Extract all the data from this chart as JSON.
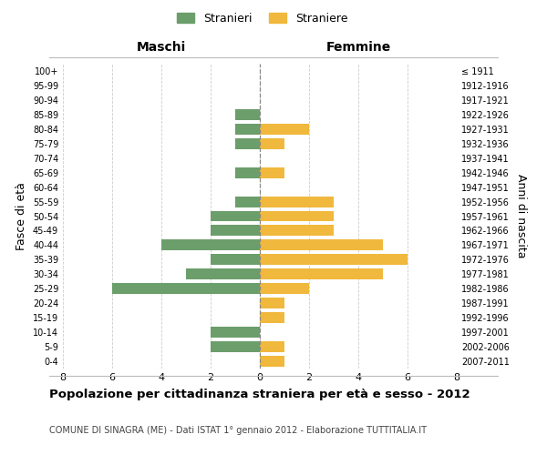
{
  "age_groups": [
    "0-4",
    "5-9",
    "10-14",
    "15-19",
    "20-24",
    "25-29",
    "30-34",
    "35-39",
    "40-44",
    "45-49",
    "50-54",
    "55-59",
    "60-64",
    "65-69",
    "70-74",
    "75-79",
    "80-84",
    "85-89",
    "90-94",
    "95-99",
    "100+"
  ],
  "birth_years": [
    "2007-2011",
    "2002-2006",
    "1997-2001",
    "1992-1996",
    "1987-1991",
    "1982-1986",
    "1977-1981",
    "1972-1976",
    "1967-1971",
    "1962-1966",
    "1957-1961",
    "1952-1956",
    "1947-1951",
    "1942-1946",
    "1937-1941",
    "1932-1936",
    "1927-1931",
    "1922-1926",
    "1917-1921",
    "1912-1916",
    "≤ 1911"
  ],
  "maschi": [
    0,
    2,
    2,
    0,
    0,
    6,
    3,
    2,
    4,
    2,
    2,
    1,
    0,
    1,
    0,
    1,
    1,
    1,
    0,
    0,
    0
  ],
  "femmine": [
    1,
    1,
    0,
    1,
    1,
    2,
    5,
    6,
    5,
    3,
    3,
    3,
    0,
    1,
    0,
    1,
    2,
    0,
    0,
    0,
    0
  ],
  "color_maschi": "#6b9e6b",
  "color_femmine": "#f0b83c",
  "title": "Popolazione per cittadinanza straniera per età e sesso - 2012",
  "subtitle": "COMUNE DI SINAGRA (ME) - Dati ISTAT 1° gennaio 2012 - Elaborazione TUTTITALIA.IT",
  "ylabel_left": "Fasce di età",
  "ylabel_right": "Anni di nascita",
  "xlabel_left": "Maschi",
  "xlabel_right": "Femmine",
  "legend_maschi": "Stranieri",
  "legend_femmine": "Straniere",
  "xlim": 8,
  "background_color": "#ffffff",
  "grid_color": "#cccccc"
}
